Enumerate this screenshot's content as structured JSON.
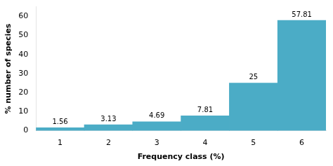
{
  "chart_data": {
    "type": "bar",
    "categories": [
      1,
      2,
      3,
      4,
      5,
      6
    ],
    "values": [
      1.56,
      3.13,
      4.69,
      7.81,
      25,
      57.81
    ],
    "color": "#4BACC6",
    "xlabel": "Frequency class (%)",
    "ylabel": "% number of species",
    "ylim": [
      0,
      65
    ],
    "yticks": [
      0,
      10,
      20,
      30,
      40,
      50,
      60
    ],
    "grid": false,
    "data_labels": true
  }
}
